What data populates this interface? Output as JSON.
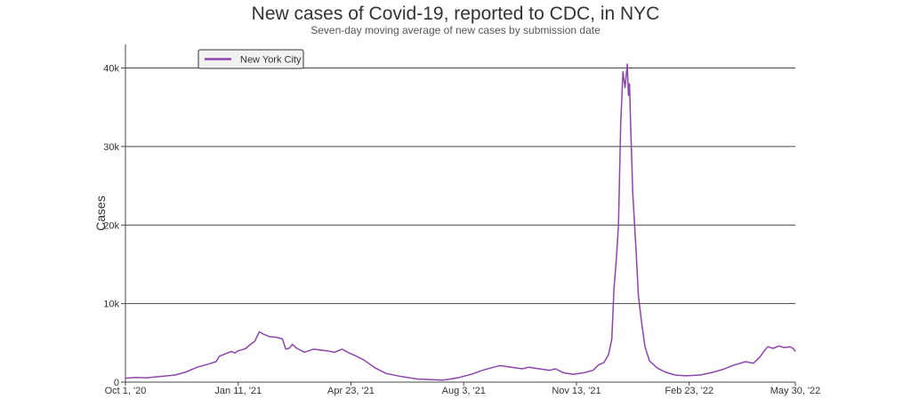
{
  "chart_data": {
    "type": "line",
    "title": "New cases of Covid-19, reported to CDC, in NYC",
    "subtitle": "Seven-day moving average of new cases by submission date",
    "xlabel": "",
    "ylabel": "Cases",
    "x_range": [
      "2020-10-01",
      "2022-05-30"
    ],
    "ylim": [
      0,
      43000
    ],
    "grid": "horizontal",
    "legend_position": "top-left",
    "x_ticks": [
      {
        "date": "2020-10-01",
        "label": "Oct 1, '20"
      },
      {
        "date": "2021-01-11",
        "label": "Jan 11, '21"
      },
      {
        "date": "2021-04-23",
        "label": "Apr 23, '21"
      },
      {
        "date": "2021-08-03",
        "label": "Aug 3, '21"
      },
      {
        "date": "2021-11-13",
        "label": "Nov 13, '21"
      },
      {
        "date": "2022-02-23",
        "label": "Feb 23, '22"
      },
      {
        "date": "2022-05-30",
        "label": "May 30, '22"
      }
    ],
    "y_ticks": [
      {
        "value": 0,
        "label": "0"
      },
      {
        "value": 10000,
        "label": "10k"
      },
      {
        "value": 20000,
        "label": "20k"
      },
      {
        "value": 30000,
        "label": "30k"
      },
      {
        "value": 40000,
        "label": "40k"
      }
    ],
    "series": [
      {
        "name": "New York City",
        "color": "#8e44ad",
        "points": [
          [
            "2020-10-01",
            500
          ],
          [
            "2020-10-10",
            600
          ],
          [
            "2020-10-20",
            550
          ],
          [
            "2020-11-01",
            700
          ],
          [
            "2020-11-15",
            900
          ],
          [
            "2020-11-25",
            1300
          ],
          [
            "2020-12-05",
            1900
          ],
          [
            "2020-12-15",
            2300
          ],
          [
            "2020-12-22",
            2600
          ],
          [
            "2020-12-25",
            3300
          ],
          [
            "2021-01-01",
            3700
          ],
          [
            "2021-01-05",
            3900
          ],
          [
            "2021-01-08",
            3700
          ],
          [
            "2021-01-11",
            4000
          ],
          [
            "2021-01-14",
            4100
          ],
          [
            "2021-01-18",
            4300
          ],
          [
            "2021-01-22",
            4800
          ],
          [
            "2021-01-26",
            5200
          ],
          [
            "2021-01-30",
            6400
          ],
          [
            "2021-02-03",
            6100
          ],
          [
            "2021-02-08",
            5800
          ],
          [
            "2021-02-15",
            5700
          ],
          [
            "2021-02-20",
            5500
          ],
          [
            "2021-02-23",
            4200
          ],
          [
            "2021-02-26",
            4300
          ],
          [
            "2021-03-01",
            4800
          ],
          [
            "2021-03-05",
            4300
          ],
          [
            "2021-03-12",
            3800
          ],
          [
            "2021-03-20",
            4200
          ],
          [
            "2021-04-01",
            4000
          ],
          [
            "2021-04-08",
            3800
          ],
          [
            "2021-04-15",
            4200
          ],
          [
            "2021-04-20",
            3800
          ],
          [
            "2021-04-28",
            3300
          ],
          [
            "2021-05-05",
            2800
          ],
          [
            "2021-05-15",
            1800
          ],
          [
            "2021-05-25",
            1100
          ],
          [
            "2021-06-08",
            700
          ],
          [
            "2021-06-22",
            400
          ],
          [
            "2021-07-05",
            300
          ],
          [
            "2021-07-15",
            250
          ],
          [
            "2021-07-22",
            400
          ],
          [
            "2021-07-30",
            600
          ],
          [
            "2021-08-10",
            1000
          ],
          [
            "2021-08-20",
            1500
          ],
          [
            "2021-08-30",
            1900
          ],
          [
            "2021-09-05",
            2100
          ],
          [
            "2021-09-15",
            1900
          ],
          [
            "2021-09-25",
            1700
          ],
          [
            "2021-10-01",
            1900
          ],
          [
            "2021-10-10",
            1700
          ],
          [
            "2021-10-20",
            1500
          ],
          [
            "2021-10-25",
            1700
          ],
          [
            "2021-11-01",
            1200
          ],
          [
            "2021-11-10",
            1000
          ],
          [
            "2021-11-20",
            1200
          ],
          [
            "2021-11-28",
            1500
          ],
          [
            "2021-12-03",
            2200
          ],
          [
            "2021-12-08",
            2500
          ],
          [
            "2021-12-12",
            3500
          ],
          [
            "2021-12-15",
            5500
          ],
          [
            "2021-12-17",
            12000
          ],
          [
            "2021-12-19",
            15500
          ],
          [
            "2021-12-21",
            20000
          ],
          [
            "2021-12-23",
            33000
          ],
          [
            "2021-12-24",
            36000
          ],
          [
            "2021-12-25",
            39500
          ],
          [
            "2021-12-26",
            38500
          ],
          [
            "2021-12-27",
            37500
          ],
          [
            "2021-12-29",
            40500
          ],
          [
            "2021-12-30",
            36500
          ],
          [
            "2021-12-31",
            38000
          ],
          [
            "2022-01-01",
            32500
          ],
          [
            "2022-01-03",
            24000
          ],
          [
            "2022-01-06",
            16500
          ],
          [
            "2022-01-08",
            11000
          ],
          [
            "2022-01-11",
            7500
          ],
          [
            "2022-01-14",
            4500
          ],
          [
            "2022-01-18",
            2700
          ],
          [
            "2022-01-25",
            1800
          ],
          [
            "2022-02-01",
            1300
          ],
          [
            "2022-02-10",
            900
          ],
          [
            "2022-02-20",
            800
          ],
          [
            "2022-03-05",
            900
          ],
          [
            "2022-03-15",
            1200
          ],
          [
            "2022-03-25",
            1600
          ],
          [
            "2022-04-05",
            2200
          ],
          [
            "2022-04-15",
            2600
          ],
          [
            "2022-04-22",
            2400
          ],
          [
            "2022-04-28",
            3200
          ],
          [
            "2022-05-02",
            4000
          ],
          [
            "2022-05-05",
            4500
          ],
          [
            "2022-05-10",
            4300
          ],
          [
            "2022-05-15",
            4600
          ],
          [
            "2022-05-20",
            4400
          ],
          [
            "2022-05-25",
            4500
          ],
          [
            "2022-05-28",
            4300
          ],
          [
            "2022-05-30",
            3900
          ]
        ]
      }
    ]
  }
}
